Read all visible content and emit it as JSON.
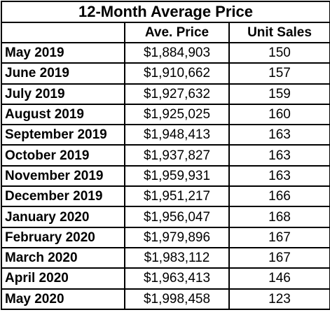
{
  "table": {
    "title": "12-Month Average Price",
    "columns": [
      "",
      "Ave. Price",
      "Unit Sales"
    ],
    "rows": [
      {
        "month": "May 2019",
        "price": "$1,884,903",
        "units": "150"
      },
      {
        "month": "June 2019",
        "price": "$1,910,662",
        "units": "157"
      },
      {
        "month": "July 2019",
        "price": "$1,927,632",
        "units": "159"
      },
      {
        "month": "August 2019",
        "price": "$1,925,025",
        "units": "160"
      },
      {
        "month": "September 2019",
        "price": "$1,948,413",
        "units": "163"
      },
      {
        "month": "October 2019",
        "price": "$1,937,827",
        "units": "163"
      },
      {
        "month": "November 2019",
        "price": "$1,959,931",
        "units": "163"
      },
      {
        "month": "December 2019",
        "price": "$1,951,217",
        "units": "166"
      },
      {
        "month": "January 2020",
        "price": "$1,956,047",
        "units": "168"
      },
      {
        "month": "February 2020",
        "price": "$1,979,896",
        "units": "167"
      },
      {
        "month": "March 2020",
        "price": "$1,983,112",
        "units": "167"
      },
      {
        "month": "April 2020",
        "price": "$1,963,413",
        "units": "146"
      },
      {
        "month": "May 2020",
        "price": "$1,998,458",
        "units": "123"
      }
    ]
  },
  "colors": {
    "border": "#000000",
    "text": "#000000",
    "background": "#ffffff"
  }
}
